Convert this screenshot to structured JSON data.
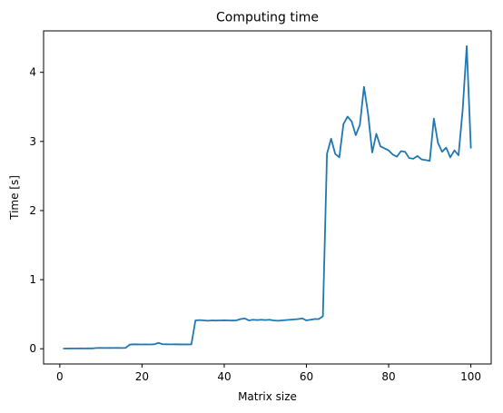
{
  "chart_data": {
    "type": "line",
    "title": "Computing time",
    "xlabel": "Matrix size",
    "ylabel": "Time [s]",
    "xlim": [
      -3.95,
      104.95
    ],
    "ylim": [
      -0.22,
      4.6
    ],
    "xticks": [
      0,
      20,
      40,
      60,
      80,
      100
    ],
    "yticks": [
      0,
      1,
      2,
      3,
      4
    ],
    "grid": false,
    "legend": "none",
    "series": [
      {
        "color": "#1f77b4",
        "x": [
          1,
          2,
          3,
          4,
          5,
          6,
          7,
          8,
          9,
          10,
          11,
          12,
          13,
          14,
          15,
          16,
          17,
          18,
          19,
          20,
          21,
          22,
          23,
          24,
          25,
          26,
          27,
          28,
          29,
          30,
          31,
          32,
          33,
          34,
          35,
          36,
          37,
          38,
          39,
          40,
          41,
          42,
          43,
          44,
          45,
          46,
          47,
          48,
          49,
          50,
          51,
          52,
          53,
          54,
          55,
          56,
          57,
          58,
          59,
          60,
          61,
          62,
          63,
          64,
          65,
          66,
          67,
          68,
          69,
          70,
          71,
          72,
          73,
          74,
          75,
          76,
          77,
          78,
          79,
          80,
          81,
          82,
          83,
          84,
          85,
          86,
          87,
          88,
          89,
          90,
          91,
          92,
          93,
          94,
          95,
          96,
          97,
          98,
          99,
          100
        ],
        "values": [
          0.003,
          0.004,
          0.005,
          0.005,
          0.006,
          0.005,
          0.006,
          0.006,
          0.012,
          0.013,
          0.012,
          0.013,
          0.012,
          0.013,
          0.012,
          0.013,
          0.06,
          0.065,
          0.063,
          0.062,
          0.064,
          0.062,
          0.065,
          0.085,
          0.066,
          0.065,
          0.064,
          0.065,
          0.063,
          0.064,
          0.063,
          0.062,
          0.41,
          0.415,
          0.41,
          0.405,
          0.41,
          0.408,
          0.41,
          0.412,
          0.41,
          0.408,
          0.412,
          0.43,
          0.44,
          0.41,
          0.42,
          0.415,
          0.42,
          0.415,
          0.42,
          0.41,
          0.405,
          0.41,
          0.415,
          0.42,
          0.425,
          0.43,
          0.44,
          0.41,
          0.42,
          0.43,
          0.43,
          0.47,
          2.82,
          3.04,
          2.82,
          2.77,
          3.25,
          3.36,
          3.29,
          3.09,
          3.24,
          3.79,
          3.4,
          2.84,
          3.11,
          2.93,
          2.9,
          2.87,
          2.81,
          2.78,
          2.86,
          2.85,
          2.76,
          2.75,
          2.79,
          2.74,
          2.73,
          2.72,
          3.33,
          2.98,
          2.85,
          2.91,
          2.77,
          2.87,
          2.8,
          3.45,
          4.38,
          2.91
        ]
      }
    ]
  }
}
